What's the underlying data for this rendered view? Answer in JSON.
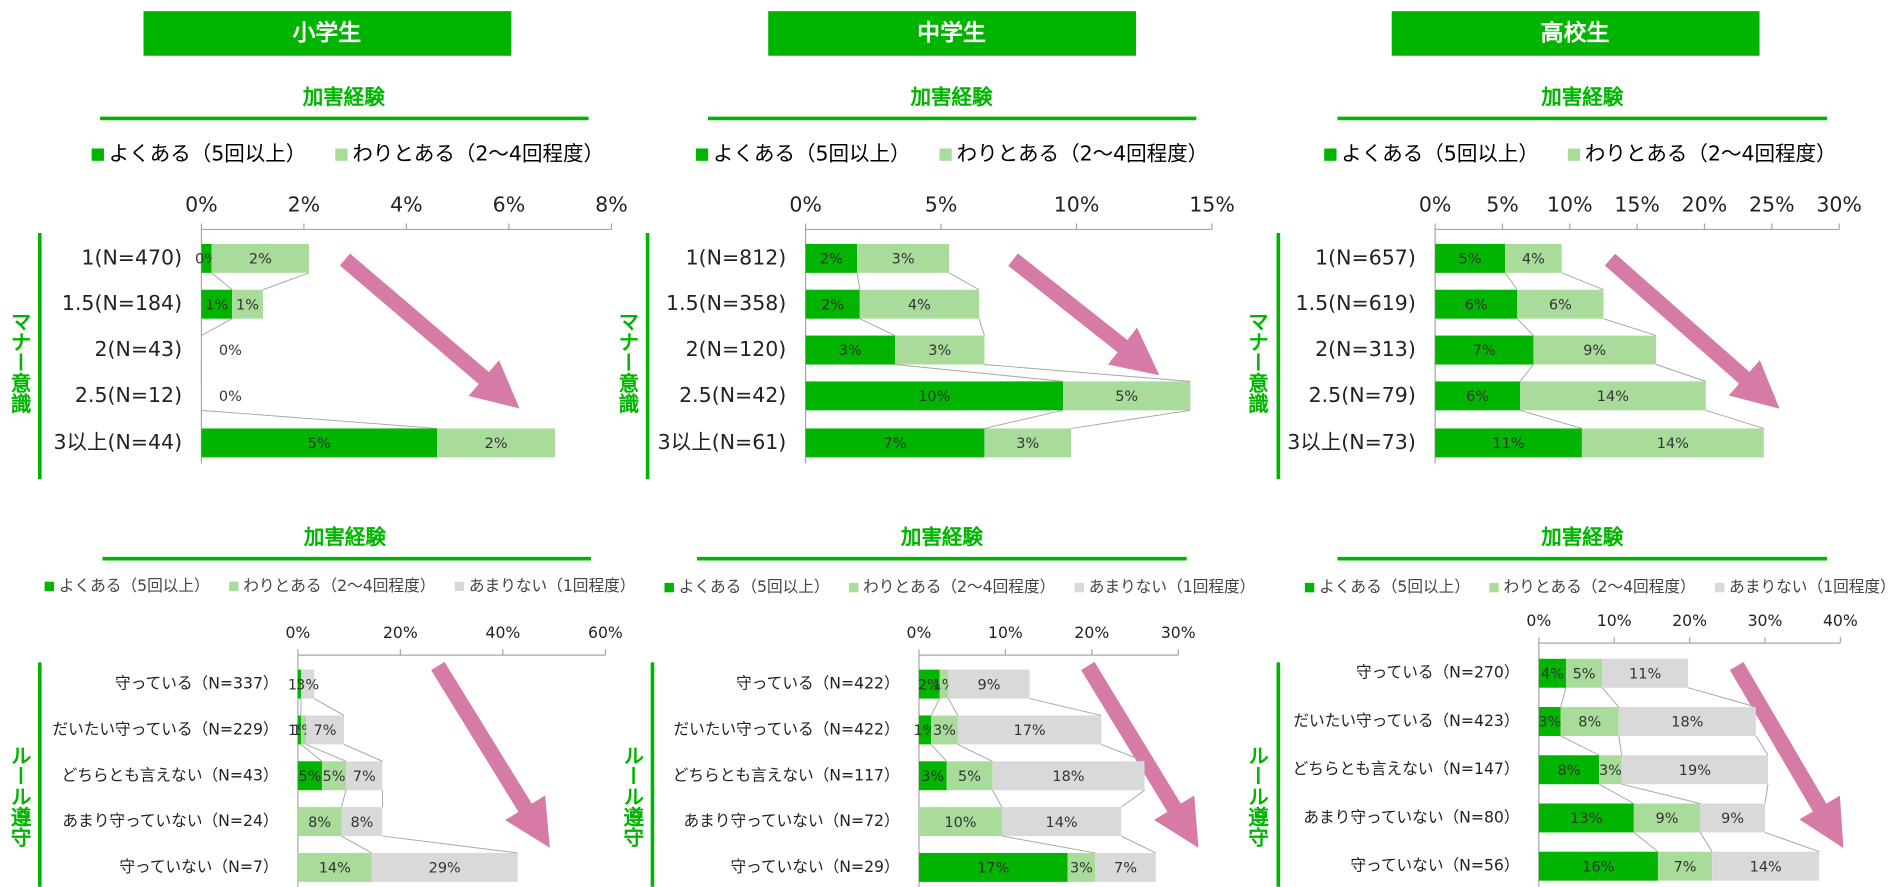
{
  "columns": [
    "小学生",
    "中学生",
    "高校生"
  ],
  "rows": [
    "マナー意識",
    "ルール遵守"
  ],
  "chart_data": [
    {
      "type": "bar",
      "title": "加害経験",
      "categories": [
        "1(N=470)",
        "1.5(N=184)",
        "2(N=43)",
        "2.5(N=12)",
        "3以上(N=44)"
      ],
      "series": [
        {
          "name": "よくある（5回以上）",
          "color": "#00b400",
          "values": [
            0.2,
            0.6,
            0,
            0,
            4.6
          ],
          "value_labels": [
            "0%",
            "1%",
            "0%",
            "0%",
            "5%"
          ]
        },
        {
          "name": "わりとある（2～4回程度）",
          "color": "#a9dc9b",
          "values": [
            1.9,
            0.6,
            null,
            null,
            2.3
          ],
          "value_labels": [
            "2%",
            "1%",
            null,
            null,
            "2%"
          ]
        }
      ],
      "xlim": [
        0,
        8
      ],
      "xticks": [
        {
          "value": 0,
          "label": "0%"
        },
        {
          "value": 2,
          "label": "2%"
        },
        {
          "value": 4,
          "label": "4%"
        },
        {
          "value": 6,
          "label": "6%"
        },
        {
          "value": 8,
          "label": "8%"
        }
      ]
    },
    {
      "type": "bar",
      "title": "加害経験",
      "categories": [
        "1(N=812)",
        "1.5(N=358)",
        "2(N=120)",
        "2.5(N=42)",
        "3以上(N=61)"
      ],
      "series": [
        {
          "name": "よくある（5回以上）",
          "color": "#00b400",
          "values": [
            1.9,
            2.0,
            3.3,
            9.5,
            6.6
          ],
          "value_labels": [
            "2%",
            "2%",
            "3%",
            "10%",
            "7%"
          ]
        },
        {
          "name": "わりとある（2～4回程度）",
          "color": "#a9dc9b",
          "values": [
            3.4,
            4.4,
            3.3,
            4.7,
            3.2
          ],
          "value_labels": [
            "3%",
            "4%",
            "3%",
            "5%",
            "3%"
          ]
        }
      ],
      "xlim": [
        0,
        15
      ],
      "xticks": [
        {
          "value": 0,
          "label": "0%"
        },
        {
          "value": 5,
          "label": "5%"
        },
        {
          "value": 10,
          "label": "10%"
        },
        {
          "value": 15,
          "label": "15%"
        }
      ]
    },
    {
      "type": "bar",
      "title": "加害経験",
      "categories": [
        "1(N=657)",
        "1.5(N=619)",
        "2(N=313)",
        "2.5(N=79)",
        "3以上(N=73)"
      ],
      "series": [
        {
          "name": "よくある（5回以上）",
          "color": "#00b400",
          "values": [
            5.2,
            6.1,
            7.3,
            6.3,
            10.9
          ],
          "value_labels": [
            "5%",
            "6%",
            "7%",
            "6%",
            "11%"
          ]
        },
        {
          "name": "わりとある（2～4回程度）",
          "color": "#a9dc9b",
          "values": [
            4.2,
            6.4,
            9.1,
            13.8,
            13.5
          ],
          "value_labels": [
            "4%",
            "6%",
            "9%",
            "14%",
            "14%"
          ]
        }
      ],
      "xlim": [
        0,
        30
      ],
      "xticks": [
        {
          "value": 0,
          "label": "0%"
        },
        {
          "value": 5,
          "label": "5%"
        },
        {
          "value": 10,
          "label": "10%"
        },
        {
          "value": 15,
          "label": "15%"
        },
        {
          "value": 20,
          "label": "20%"
        },
        {
          "value": 25,
          "label": "25%"
        },
        {
          "value": 30,
          "label": "30%"
        }
      ]
    },
    {
      "type": "bar",
      "title": "加害経験",
      "categories": [
        "守っている（N=337）",
        "だいたい守っている（N=229）",
        "どちらとも言えない（N=43）",
        "あまり守っていない（N=24）",
        "守っていない（N=7）"
      ],
      "series": [
        {
          "name": "よくある（5回以上）",
          "color": "#00b400",
          "values": [
            0.6,
            0.6,
            4.7,
            null,
            null
          ],
          "value_labels": [
            "1%",
            "1%",
            "5%",
            null,
            null
          ]
        },
        {
          "name": "わりとある（2～4回程度）",
          "color": "#a9dc9b",
          "values": [
            null,
            1.0,
            4.7,
            8.5,
            14.4
          ],
          "value_labels": [
            null,
            "1%",
            "5%",
            "8%",
            "14%"
          ]
        },
        {
          "name": "あまりない（1回程度）",
          "color": "#d9d9d9",
          "values": [
            2.6,
            7.4,
            7.1,
            8.0,
            28.5
          ],
          "value_labels": [
            "3%",
            "7%",
            "7%",
            "8%",
            "29%"
          ]
        }
      ],
      "xlim": [
        0,
        60
      ],
      "xticks": [
        {
          "value": 0,
          "label": "0%"
        },
        {
          "value": 20,
          "label": "20%"
        },
        {
          "value": 40,
          "label": "40%"
        },
        {
          "value": 60,
          "label": "60%"
        }
      ]
    },
    {
      "type": "bar",
      "title": "加害経験",
      "categories": [
        "守っている（N=422）",
        "だいたい守っている（N=422）",
        "どちらとも言えない（N=117）",
        "あまり守っていない（N=72）",
        "守っていない（N=29）"
      ],
      "series": [
        {
          "name": "よくある（5回以上）",
          "color": "#00b400",
          "values": [
            2.4,
            1.4,
            3.2,
            null,
            17.2
          ],
          "value_labels": [
            "2%",
            "1%",
            "3%",
            null,
            "17%"
          ]
        },
        {
          "name": "わりとある（2～4回程度）",
          "color": "#a9dc9b",
          "values": [
            1.0,
            3.1,
            5.3,
            9.6,
            3.2
          ],
          "value_labels": [
            "1%",
            "3%",
            "5%",
            "10%",
            "3%"
          ]
        },
        {
          "name": "あまりない（1回程度）",
          "color": "#d9d9d9",
          "values": [
            9.4,
            16.6,
            17.6,
            13.8,
            7.0
          ],
          "value_labels": [
            "9%",
            "17%",
            "18%",
            "14%",
            "7%"
          ]
        }
      ],
      "xlim": [
        0,
        30
      ],
      "xticks": [
        {
          "value": 0,
          "label": "0%"
        },
        {
          "value": 10,
          "label": "10%"
        },
        {
          "value": 20,
          "label": "20%"
        },
        {
          "value": 30,
          "label": "30%"
        }
      ]
    },
    {
      "type": "bar",
      "title": "加害経験",
      "categories": [
        "守っている（N=270）",
        "だいたい守っている（N=423）",
        "どちらとも言えない（N=147）",
        "あまり守っていない（N=80）",
        "守っていない（N=56）"
      ],
      "series": [
        {
          "name": "よくある（5回以上）",
          "color": "#00b400",
          "values": [
            3.6,
            2.9,
            8.0,
            12.6,
            15.8
          ],
          "value_labels": [
            "4%",
            "3%",
            "8%",
            "13%",
            "16%"
          ]
        },
        {
          "name": "わりとある（2～4回程度）",
          "color": "#a9dc9b",
          "values": [
            4.8,
            7.7,
            3.0,
            8.8,
            7.2
          ],
          "value_labels": [
            "5%",
            "8%",
            "3%",
            "9%",
            "7%"
          ]
        },
        {
          "name": "あまりない（1回程度）",
          "color": "#d9d9d9",
          "values": [
            11.4,
            18.2,
            19.4,
            8.6,
            14.2
          ],
          "value_labels": [
            "11%",
            "18%",
            "19%",
            "9%",
            "14%"
          ]
        }
      ],
      "xlim": [
        0,
        40
      ],
      "xticks": [
        {
          "value": 0,
          "label": "0%"
        },
        {
          "value": 10,
          "label": "10%"
        },
        {
          "value": 20,
          "label": "20%"
        },
        {
          "value": 30,
          "label": "30%"
        },
        {
          "value": 40,
          "label": "40%"
        }
      ]
    }
  ]
}
